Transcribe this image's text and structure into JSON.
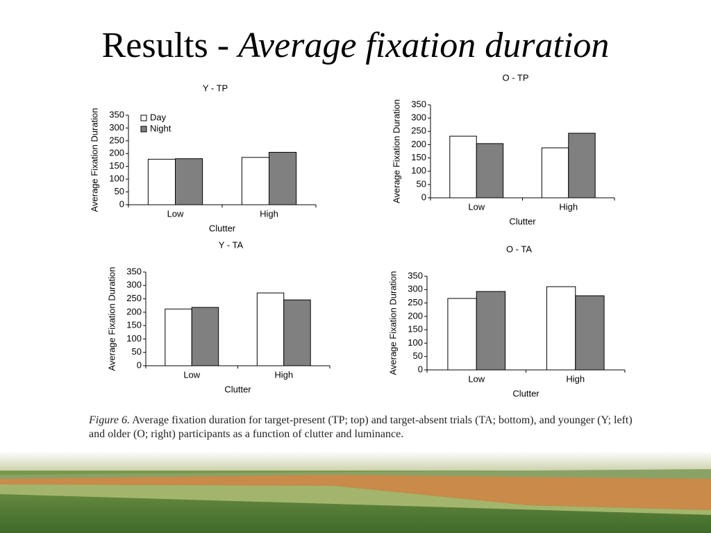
{
  "slide": {
    "title": "Results -",
    "title_italic": "Average fixation duration"
  },
  "caption": {
    "label": "Figure 6.",
    "text": "Average fixation duration for target-present (TP; top) and target-absent trials (TA; bottom), and younger (Y; left) and older (O; right) participants as a function of clutter and luminance."
  },
  "chart_data": [
    {
      "type": "bar",
      "title": "Y - TP",
      "xlabel": "Clutter",
      "ylabel": "Average Fixation Duration",
      "categories": [
        "Low",
        "High"
      ],
      "series": [
        {
          "name": "Day",
          "color": "#ffffff",
          "values": [
            178,
            185
          ]
        },
        {
          "name": "Night",
          "color": "#808080",
          "values": [
            180,
            205
          ]
        }
      ],
      "ylim": [
        0,
        350
      ],
      "yticks": [
        0,
        50,
        100,
        150,
        200,
        250,
        300,
        350
      ],
      "legend": "top-left"
    },
    {
      "type": "bar",
      "title": "O - TP",
      "xlabel": "Clutter",
      "ylabel": "Average Fixation Duration",
      "categories": [
        "Low",
        "High"
      ],
      "series": [
        {
          "name": "Day",
          "color": "#ffffff",
          "values": [
            232,
            188
          ]
        },
        {
          "name": "Night",
          "color": "#808080",
          "values": [
            204,
            243
          ]
        }
      ],
      "ylim": [
        0,
        350
      ],
      "yticks": [
        0,
        50,
        100,
        150,
        200,
        250,
        300,
        350
      ]
    },
    {
      "type": "bar",
      "title": "Y - TA",
      "xlabel": "Clutter",
      "ylabel": "Average Fixation Duration",
      "categories": [
        "Low",
        "High"
      ],
      "series": [
        {
          "name": "Day",
          "color": "#ffffff",
          "values": [
            212,
            272
          ]
        },
        {
          "name": "Night",
          "color": "#808080",
          "values": [
            218,
            246
          ]
        }
      ],
      "ylim": [
        0,
        350
      ],
      "yticks": [
        0,
        50,
        100,
        150,
        200,
        250,
        300,
        350
      ]
    },
    {
      "type": "bar",
      "title": "O - TA",
      "xlabel": "Clutter",
      "ylabel": "Average Fixation Duration",
      "categories": [
        "Low",
        "High"
      ],
      "series": [
        {
          "name": "Day",
          "color": "#ffffff",
          "values": [
            267,
            311
          ]
        },
        {
          "name": "Night",
          "color": "#808080",
          "values": [
            293,
            277
          ]
        }
      ],
      "ylim": [
        0,
        350
      ],
      "yticks": [
        0,
        50,
        100,
        150,
        200,
        250,
        300,
        350
      ]
    }
  ]
}
